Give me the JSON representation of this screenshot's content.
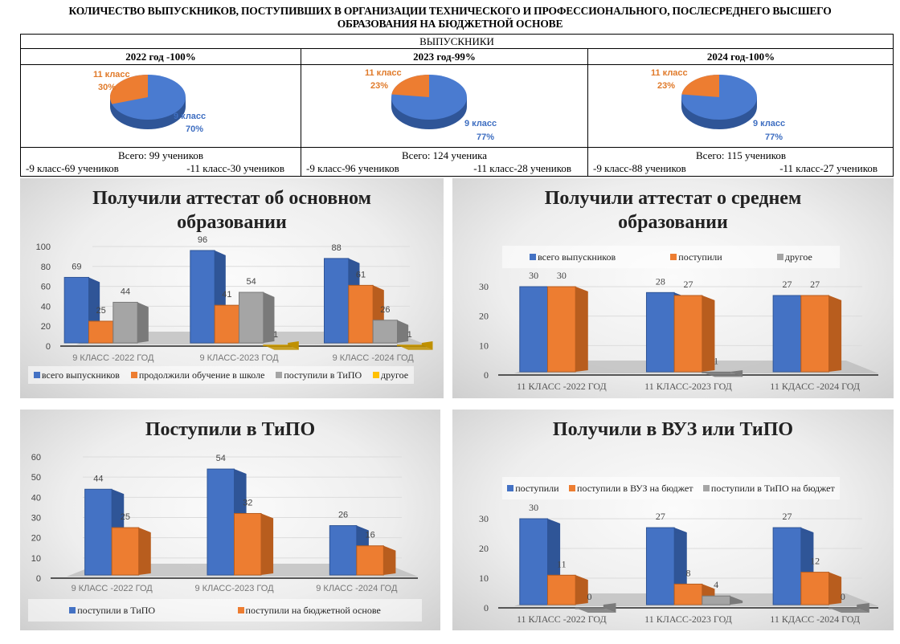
{
  "header": {
    "title_line1": "КОЛИЧЕСТВО ВЫПУСКНИКОВ, ПОСТУПИВШИХ В ОРГАНИЗАЦИИ ТЕХНИЧЕСКОГО И ПРОФЕССИОНАЛЬНОГО, ПОСЛЕСРЕДНЕГО ВЫСШЕГО",
    "title_line2": "ОБРАЗОВАНИЯ НА БЮДЖЕТНОЙ ОСНОВЕ"
  },
  "table": {
    "heading": "ВЫПУСКНИКИ",
    "columns": [
      {
        "year": "2022 год -100%",
        "total": "Всего: 99 учеников",
        "grade9": "-9 класс-69 учеников",
        "grade11": "-11 класс-30 учеников"
      },
      {
        "year": "2023 год-99%",
        "total": "Всего: 124 ученика",
        "grade9": "-9 класс-96 учеников",
        "grade11": "-11 класс-28 учеников"
      },
      {
        "year": "2024 год-100%",
        "total": "Всего: 115 учеников",
        "grade9": "-9 класс-88 учеников",
        "grade11": "-11 класс-27 учеников"
      }
    ]
  },
  "colors": {
    "blue": "#4472c4",
    "orange": "#ed7d31",
    "gray": "#a5a5a5",
    "yellow": "#ffc000"
  },
  "chart_data": [
    {
      "type": "pie",
      "title": "2022 год -100%",
      "slices": [
        {
          "label": "11 класс",
          "pct_label": "30%",
          "value": 30
        },
        {
          "label": "9 класс",
          "pct_label": "70%",
          "value": 70
        }
      ]
    },
    {
      "type": "pie",
      "title": "2023 год-99%",
      "slices": [
        {
          "label": "11 класс",
          "pct_label": "23%",
          "value": 23
        },
        {
          "label": "9 класс",
          "pct_label": "77%",
          "value": 77
        }
      ]
    },
    {
      "type": "pie",
      "title": "2024 год-100%",
      "slices": [
        {
          "label": "11 класс",
          "pct_label": "23%",
          "value": 23
        },
        {
          "label": "9 класс",
          "pct_label": "77%",
          "value": 77
        }
      ]
    },
    {
      "type": "bar",
      "title": "Получили аттестат об основном образовании",
      "title_lines": [
        "Получили аттестат об основном",
        "образовании"
      ],
      "categories": [
        "9 КЛАСС -2022 ГОД",
        "9 КЛАСС-2023 ГОД",
        "9 КЛАСС -2024 ГОД"
      ],
      "series": [
        {
          "name": "всего выпускников",
          "values": [
            69,
            96,
            88
          ]
        },
        {
          "name": "продолжили обучение в школе",
          "values": [
            25,
            41,
            61
          ]
        },
        {
          "name": "поступили в ТиПО",
          "values": [
            44,
            54,
            26
          ]
        },
        {
          "name": "другое",
          "values": [
            null,
            1,
            1
          ]
        }
      ],
      "ylim": [
        0,
        100
      ],
      "yticks": [
        "0",
        "20",
        "40",
        "60",
        "80",
        "100"
      ],
      "legend": "bottom"
    },
    {
      "type": "bar",
      "title": "Получили аттестат о среднем образовании",
      "title_lines": [
        "Получили аттестат о среднем",
        "образовании"
      ],
      "categories": [
        "11 КЛАСС -2022 ГОД",
        "11 КЛАСС-2023 ГОД",
        "11 КДАСС -2024 ГОД"
      ],
      "series": [
        {
          "name": "всего выпускников",
          "values": [
            30,
            28,
            27
          ]
        },
        {
          "name": "поступили",
          "values": [
            30,
            27,
            27
          ]
        },
        {
          "name": "другое",
          "values": [
            null,
            1,
            null
          ]
        }
      ],
      "ylim": [
        0,
        30
      ],
      "yticks": [
        "0",
        "10",
        "20",
        "30"
      ],
      "legend": "top"
    },
    {
      "type": "bar",
      "title": "Поступили в ТиПО",
      "title_lines": [
        "Поступили в ТиПО"
      ],
      "categories": [
        "9 КЛАСС -2022 ГОД",
        "9 КЛАСС-2023 ГОД",
        "9 КЛАСС -2024 ГОД"
      ],
      "series": [
        {
          "name": "поступили в ТиПО",
          "values": [
            44,
            54,
            26
          ]
        },
        {
          "name": "поступили на бюджетной основе",
          "values": [
            25,
            32,
            16
          ]
        }
      ],
      "ylim": [
        0,
        60
      ],
      "yticks": [
        "0",
        "10",
        "20",
        "30",
        "40",
        "50",
        "60"
      ],
      "legend": "bottom"
    },
    {
      "type": "bar",
      "title": "Получили в ВУЗ или ТиПО",
      "title_lines": [
        "Получили в ВУЗ или ТиПО"
      ],
      "categories": [
        "11 КЛАСС -2022 ГОД",
        "11 КЛАСС-2023 ГОД",
        "11 КДАСС -2024 ГОД"
      ],
      "series": [
        {
          "name": "поступили",
          "values": [
            30,
            27,
            27
          ]
        },
        {
          "name": "поступили в ВУЗ на бюджет",
          "values": [
            11,
            8,
            12
          ]
        },
        {
          "name": "поступили в ТиПО на бюджет",
          "values": [
            0,
            4,
            0
          ]
        }
      ],
      "ylim": [
        0,
        30
      ],
      "yticks": [
        "0",
        "10",
        "20",
        "30"
      ],
      "legend": "top"
    }
  ]
}
